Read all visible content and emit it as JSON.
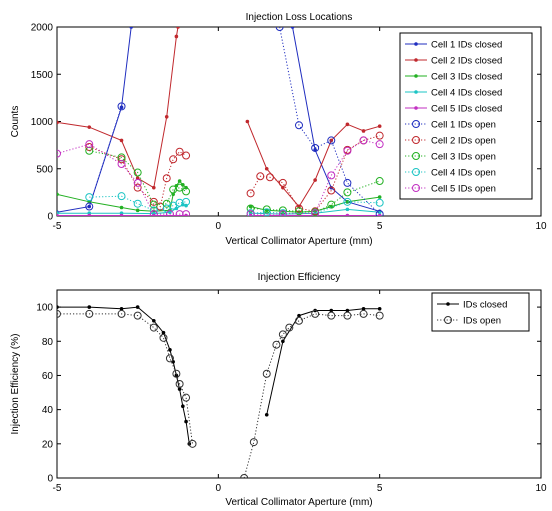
{
  "chart_data": [
    {
      "type": "line",
      "title": "Injection Loss Locations",
      "xlabel": "Vertical Collimator Aperture (mm)",
      "ylabel": "Counts",
      "xlim": [
        -5,
        10
      ],
      "ylim": [
        0,
        2000
      ],
      "xticks": [
        "-5",
        "0",
        "5",
        "10"
      ],
      "yticks": [
        "0",
        "500",
        "1000",
        "1500",
        "2000"
      ],
      "grid": false,
      "legend_position": "top-right",
      "series": [
        {
          "name": "Cell 1 IDs closed",
          "color": "#1f2dbf",
          "style": "solid",
          "marker": "dot",
          "points": [
            [
              -5,
              40
            ],
            [
              -4,
              100
            ],
            [
              -3,
              1150
            ],
            [
              -2.7,
              2000
            ],
            [
              2.3,
              2000
            ],
            [
              3,
              700
            ],
            [
              3.5,
              300
            ],
            [
              4,
              150
            ],
            [
              5,
              50
            ]
          ]
        },
        {
          "name": "Cell 2 IDs closed",
          "color": "#c0282d",
          "style": "solid",
          "marker": "dot",
          "points": [
            [
              -5,
              990
            ],
            [
              -4,
              940
            ],
            [
              -3,
              800
            ],
            [
              -2.5,
              400
            ],
            [
              -2,
              300
            ],
            [
              -1.6,
              1050
            ],
            [
              -1.3,
              1900
            ],
            [
              -1.25,
              2000
            ],
            [
              0.9,
              1000
            ],
            [
              1.5,
              500
            ],
            [
              2,
              300
            ],
            [
              2.5,
              100
            ],
            [
              3,
              380
            ],
            [
              3.5,
              800
            ],
            [
              4,
              970
            ],
            [
              4.5,
              900
            ],
            [
              5,
              950
            ]
          ]
        },
        {
          "name": "Cell 3 IDs closed",
          "color": "#22b022",
          "style": "solid",
          "marker": "dot",
          "points": [
            [
              -5,
              230
            ],
            [
              -4,
              150
            ],
            [
              -3,
              90
            ],
            [
              -2.5,
              60
            ],
            [
              -2,
              50
            ],
            [
              -1.5,
              60
            ],
            [
              -1.4,
              230
            ],
            [
              -1.3,
              320
            ],
            [
              -1.2,
              370
            ],
            [
              -1.1,
              330
            ],
            [
              -1,
              300
            ],
            [
              1,
              100
            ],
            [
              1.5,
              60
            ],
            [
              2,
              50
            ],
            [
              2.5,
              40
            ],
            [
              3,
              50
            ],
            [
              3.5,
              100
            ],
            [
              4,
              150
            ],
            [
              5,
              200
            ]
          ]
        },
        {
          "name": "Cell 4 IDs closed",
          "color": "#1bc4c4",
          "style": "solid",
          "marker": "dot",
          "points": [
            [
              -5,
              30
            ],
            [
              -4,
              30
            ],
            [
              -3,
              30
            ],
            [
              -2,
              25
            ],
            [
              -1.5,
              40
            ],
            [
              -1.3,
              80
            ],
            [
              -1.1,
              120
            ],
            [
              -1,
              110
            ],
            [
              1,
              30
            ],
            [
              2,
              20
            ],
            [
              3,
              30
            ],
            [
              4,
              70
            ],
            [
              5,
              40
            ]
          ]
        },
        {
          "name": "Cell 5 IDs closed",
          "color": "#c22fc2",
          "style": "solid",
          "marker": "dot",
          "points": [
            [
              -5,
              5
            ],
            [
              -4,
              5
            ],
            [
              -3,
              5
            ],
            [
              -2,
              5
            ],
            [
              -1,
              5
            ],
            [
              1,
              5
            ],
            [
              2,
              5
            ],
            [
              3,
              5
            ],
            [
              4,
              5
            ],
            [
              5,
              5
            ]
          ]
        },
        {
          "name": "Cell 1 IDs open",
          "color": "#1f2dbf",
          "style": "dotted",
          "marker": "circle",
          "points": [
            [
              -4,
              100
            ],
            [
              -3,
              1160
            ],
            [
              1.9,
              2000
            ],
            [
              2.5,
              960
            ],
            [
              3,
              720
            ],
            [
              3.5,
              800
            ],
            [
              4,
              350
            ],
            [
              5,
              20
            ]
          ]
        },
        {
          "name": "Cell 2 IDs open",
          "color": "#c0282d",
          "style": "dotted",
          "marker": "circle",
          "points": [
            [
              -4,
              730
            ],
            [
              -3,
              600
            ],
            [
              -2.5,
              300
            ],
            [
              -2,
              150
            ],
            [
              -1.8,
              100
            ],
            [
              -1.6,
              400
            ],
            [
              -1.4,
              600
            ],
            [
              -1.2,
              680
            ],
            [
              -1,
              640
            ],
            [
              1,
              240
            ],
            [
              1.3,
              420
            ],
            [
              1.6,
              410
            ],
            [
              2,
              350
            ],
            [
              2.5,
              80
            ],
            [
              3,
              50
            ],
            [
              3.5,
              270
            ],
            [
              4,
              700
            ],
            [
              4.5,
              800
            ],
            [
              5,
              850
            ]
          ]
        },
        {
          "name": "Cell 3 IDs open",
          "color": "#22b022",
          "style": "dotted",
          "marker": "circle",
          "points": [
            [
              -4,
              690
            ],
            [
              -3,
              620
            ],
            [
              -2.5,
              460
            ],
            [
              -2,
              120
            ],
            [
              -1.6,
              130
            ],
            [
              -1.4,
              280
            ],
            [
              -1.2,
              300
            ],
            [
              -1,
              260
            ],
            [
              1,
              80
            ],
            [
              1.5,
              70
            ],
            [
              2,
              60
            ],
            [
              2.5,
              50
            ],
            [
              3,
              40
            ],
            [
              3.5,
              120
            ],
            [
              4,
              250
            ],
            [
              5,
              370
            ]
          ]
        },
        {
          "name": "Cell 4 IDs open",
          "color": "#1bc4c4",
          "style": "dotted",
          "marker": "circle",
          "points": [
            [
              -4,
              200
            ],
            [
              -3,
              210
            ],
            [
              -2.5,
              130
            ],
            [
              -2,
              60
            ],
            [
              -1.6,
              80
            ],
            [
              -1.4,
              110
            ],
            [
              -1.2,
              140
            ],
            [
              -1,
              150
            ],
            [
              1,
              30
            ],
            [
              1.5,
              40
            ],
            [
              2,
              30
            ],
            [
              3,
              30
            ],
            [
              4,
              150
            ],
            [
              5,
              140
            ]
          ]
        },
        {
          "name": "Cell 5 IDs open",
          "color": "#c22fc2",
          "style": "dotted",
          "marker": "circle",
          "points": [
            [
              -5,
              660
            ],
            [
              -4,
              760
            ],
            [
              -3,
              550
            ],
            [
              -2.5,
              350
            ],
            [
              -2,
              20
            ],
            [
              -1.5,
              20
            ],
            [
              -1.2,
              20
            ],
            [
              -1,
              20
            ],
            [
              1,
              20
            ],
            [
              2,
              20
            ],
            [
              3,
              30
            ],
            [
              3.5,
              430
            ],
            [
              4,
              690
            ],
            [
              4.5,
              800
            ],
            [
              5,
              760
            ]
          ]
        }
      ]
    },
    {
      "type": "line",
      "title": "Injection Efficiency",
      "xlabel": "Vertical Collimator Aperture (mm)",
      "ylabel": "Injection Efficiency (%)",
      "xlim": [
        -5,
        10
      ],
      "ylim": [
        0,
        110
      ],
      "xticks": [
        "-5",
        "0",
        "5",
        "10"
      ],
      "yticks": [
        "0",
        "20",
        "40",
        "60",
        "80",
        "100"
      ],
      "grid": false,
      "legend_position": "top-right",
      "series": [
        {
          "name": "IDs closed",
          "color": "#000000",
          "style": "solid",
          "marker": "dot",
          "points": [
            [
              -5,
              100
            ],
            [
              -4,
              100
            ],
            [
              -3,
              99
            ],
            [
              -2.5,
              100
            ],
            [
              -2,
              92
            ],
            [
              -1.7,
              85
            ],
            [
              -1.5,
              75
            ],
            [
              -1.4,
              68
            ],
            [
              -1.3,
              60
            ],
            [
              -1.2,
              52
            ],
            [
              -1.1,
              42
            ],
            [
              -1,
              33
            ],
            [
              -0.9,
              20
            ],
            [
              1.5,
              37
            ],
            [
              2,
              80
            ],
            [
              2.5,
              95
            ],
            [
              3,
              98
            ],
            [
              3.5,
              98
            ],
            [
              4,
              98
            ],
            [
              4.5,
              99
            ],
            [
              5,
              99
            ]
          ]
        },
        {
          "name": "IDs open",
          "color": "#333333",
          "style": "dotted",
          "marker": "circle",
          "points": [
            [
              -5,
              96
            ],
            [
              -4,
              96
            ],
            [
              -3,
              96
            ],
            [
              -2.5,
              95
            ],
            [
              -2,
              88
            ],
            [
              -1.7,
              82
            ],
            [
              -1.5,
              70
            ],
            [
              -1.3,
              61
            ],
            [
              -1.2,
              55
            ],
            [
              -1,
              47
            ],
            [
              -0.8,
              20
            ],
            [
              0.8,
              0
            ],
            [
              1.1,
              21
            ],
            [
              1.5,
              61
            ],
            [
              1.8,
              78
            ],
            [
              2,
              84
            ],
            [
              2.2,
              88
            ],
            [
              2.5,
              92
            ],
            [
              3,
              96
            ],
            [
              3.5,
              95
            ],
            [
              4,
              95
            ],
            [
              4.5,
              96
            ],
            [
              5,
              95
            ]
          ]
        }
      ]
    }
  ]
}
